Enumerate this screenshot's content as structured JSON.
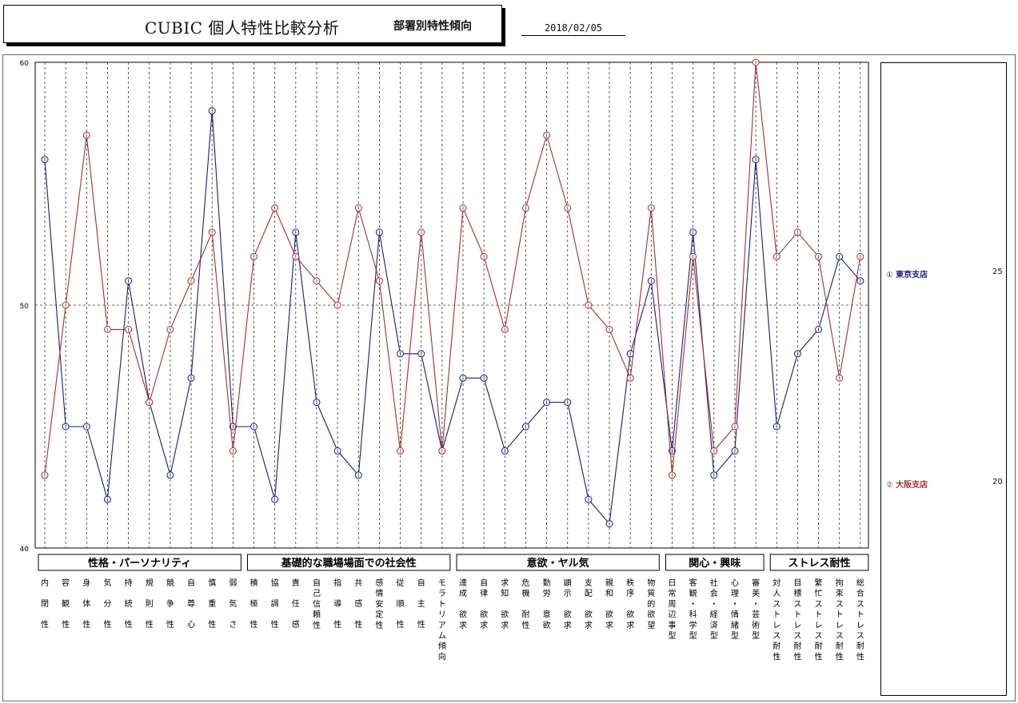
{
  "header": {
    "title": "CUBIC 個人特性比較分析",
    "subtitle": "部署別特性傾向",
    "date": "2018/02/05"
  },
  "legend": {
    "items": [
      {
        "marker": "①",
        "name": "東京支店",
        "count": "25",
        "color": "#1a1a7a"
      },
      {
        "marker": "②",
        "name": "大阪支店",
        "count": "20",
        "color": "#a03030"
      }
    ]
  },
  "chart_data": {
    "type": "line",
    "ylim": [
      40,
      60
    ],
    "yticks": [
      40,
      50,
      60
    ],
    "grid": "vertical dashed per category, dashed line at 50",
    "groups": [
      {
        "label": "性格・パーソナリティ",
        "count": 10
      },
      {
        "label": "基礎的な職場場面での社会性",
        "count": 10
      },
      {
        "label": "意欲・ヤル気",
        "count": 10
      },
      {
        "label": "関心・興味",
        "count": 5
      },
      {
        "label": "ストレス耐性",
        "count": 5
      }
    ],
    "categories": [
      "内閉性",
      "容観性",
      "身体性",
      "気分性",
      "持続性",
      "規則性",
      "競争性",
      "自尊心",
      "慎重性",
      "弱気さ",
      "積極性",
      "協調性",
      "責任感",
      "自己信頼性",
      "指導性",
      "共感性",
      "感情安定性",
      "従順性",
      "自主性",
      "モラトリアム傾向",
      "達成欲求",
      "自律欲求",
      "求知欲求",
      "危機耐性",
      "勤労意欲",
      "顕示欲求",
      "支配欲求",
      "親和欲求",
      "秩序欲求",
      "物質的欲望",
      "日常周辺事型",
      "客観・科学型",
      "社会・経済型",
      "心理・情緒型",
      "審美・芸術型",
      "対人ストレス耐性",
      "目標ストレス耐性",
      "繁忙ストレス耐性",
      "拘束ストレス耐性",
      "総合ストレス耐性"
    ],
    "category_lines": [
      [
        "内",
        "閉",
        "性"
      ],
      [
        "容",
        "観",
        "性"
      ],
      [
        "身",
        "体",
        "性"
      ],
      [
        "気",
        "分",
        "性"
      ],
      [
        "持",
        "続",
        "性"
      ],
      [
        "規",
        "則",
        "性"
      ],
      [
        "競",
        "争",
        "性"
      ],
      [
        "自",
        "尊",
        "心"
      ],
      [
        "慎",
        "重",
        "性"
      ],
      [
        "弱",
        "気",
        "さ"
      ],
      [
        "積",
        "極",
        "性"
      ],
      [
        "協",
        "調",
        "性"
      ],
      [
        "責",
        "任",
        "感"
      ],
      [
        "自",
        "己",
        "信",
        "頼",
        "性"
      ],
      [
        "指",
        "導",
        "性"
      ],
      [
        "共",
        "感",
        "性"
      ],
      [
        "感",
        "情",
        "安",
        "定",
        "性"
      ],
      [
        "従",
        "順",
        "性"
      ],
      [
        "自",
        "主",
        "性"
      ],
      [
        "モ",
        "ラ",
        "ト",
        "リ",
        "ア",
        "ム",
        "傾",
        "向"
      ],
      [
        "達",
        "成",
        "",
        "欲",
        "求"
      ],
      [
        "自",
        "律",
        "",
        "欲",
        "求"
      ],
      [
        "求",
        "知",
        "",
        "欲",
        "求"
      ],
      [
        "危",
        "機",
        "",
        "耐",
        "性"
      ],
      [
        "勤",
        "労",
        "",
        "意",
        "欲"
      ],
      [
        "顕",
        "示",
        "",
        "欲",
        "求"
      ],
      [
        "支",
        "配",
        "",
        "欲",
        "求"
      ],
      [
        "親",
        "和",
        "",
        "欲",
        "求"
      ],
      [
        "秩",
        "序",
        "",
        "欲",
        "求"
      ],
      [
        "物",
        "質",
        "的",
        "欲",
        "望"
      ],
      [
        "日",
        "常",
        "周",
        "辺",
        "事",
        "型"
      ],
      [
        "客",
        "観",
        "・",
        "科",
        "学",
        "型"
      ],
      [
        "社",
        "会",
        "・",
        "経",
        "済",
        "型"
      ],
      [
        "心",
        "理",
        "・",
        "情",
        "緒",
        "型"
      ],
      [
        "審",
        "美",
        "・",
        "芸",
        "術",
        "型"
      ],
      [
        "対",
        "人",
        "ス",
        "ト",
        "レ",
        "ス",
        "耐",
        "性"
      ],
      [
        "目",
        "標",
        "ス",
        "ト",
        "レ",
        "ス",
        "耐",
        "性"
      ],
      [
        "繁",
        "忙",
        "ス",
        "ト",
        "レ",
        "ス",
        "耐",
        "性"
      ],
      [
        "拘",
        "束",
        "ス",
        "ト",
        "レ",
        "ス",
        "耐",
        "性"
      ],
      [
        "総",
        "合",
        "ス",
        "ト",
        "レ",
        "ス",
        "耐",
        "性"
      ]
    ],
    "series": [
      {
        "name": "東京支店",
        "marker": "①",
        "color": "#1a1a7a",
        "values": [
          56,
          45,
          45,
          42,
          51,
          46,
          43,
          47,
          58,
          45,
          45,
          42,
          53,
          46,
          44,
          43,
          53,
          48,
          48,
          44,
          47,
          47,
          44,
          45,
          46,
          46,
          42,
          41,
          48,
          51,
          44,
          53,
          43,
          44,
          56,
          45,
          48,
          49,
          52,
          51
        ]
      },
      {
        "name": "大阪支店",
        "marker": "②",
        "color": "#a03030",
        "values": [
          43,
          50,
          57,
          49,
          49,
          46,
          49,
          51,
          53,
          44,
          52,
          54,
          52,
          51,
          50,
          54,
          51,
          44,
          53,
          44,
          54,
          52,
          49,
          54,
          57,
          54,
          50,
          49,
          47,
          54,
          43,
          52,
          44,
          45,
          60,
          52,
          53,
          52,
          47,
          52
        ]
      }
    ]
  }
}
